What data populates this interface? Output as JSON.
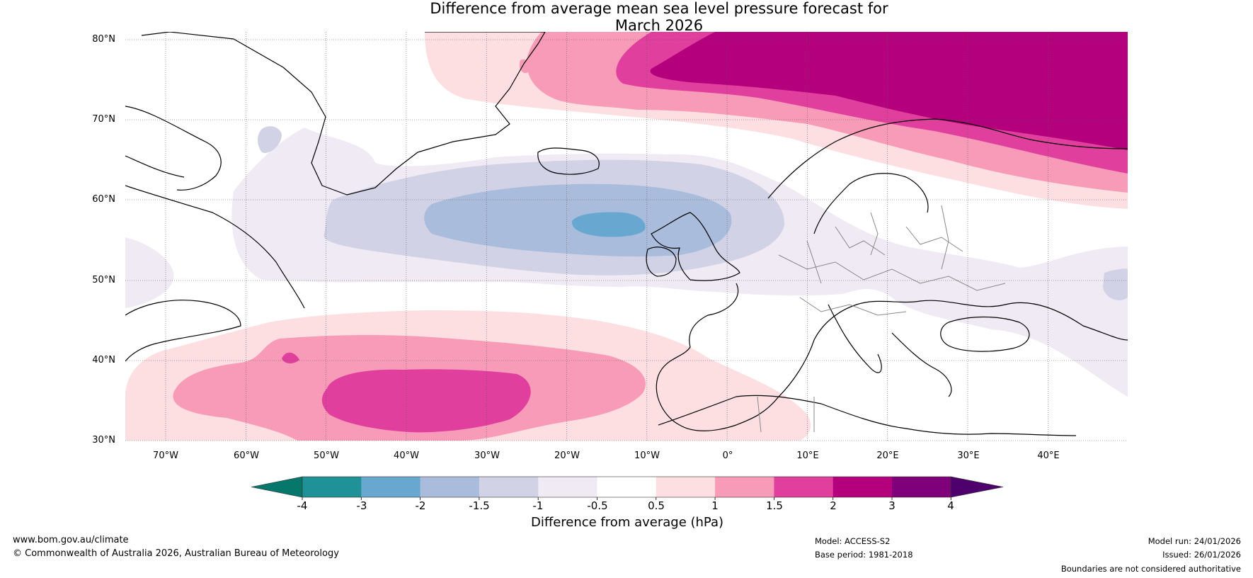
{
  "title": {
    "line1": "Difference from average mean sea level pressure forecast for",
    "line2": "March 2026"
  },
  "map": {
    "lat_labels": [
      "80°N",
      "70°N",
      "60°N",
      "50°N",
      "40°N",
      "30°N"
    ],
    "lon_labels": [
      "70°W",
      "60°W",
      "50°W",
      "40°W",
      "30°W",
      "20°W",
      "10°W",
      "0°",
      "10°E",
      "20°E",
      "30°E",
      "40°E"
    ]
  },
  "colorbar": {
    "title": "Difference from average (hPa)",
    "tick_labels": [
      "-4",
      "-3",
      "-2",
      "-1.5",
      "-1",
      "-0.5",
      "0.5",
      "1",
      "1.5",
      "2",
      "3",
      "4"
    ],
    "colors": [
      "#06776b",
      "#1e9297",
      "#68a8d0",
      "#a9bcdc",
      "#d2d2e6",
      "#efeaf3",
      "#ffffff",
      "#fddfe1",
      "#f89bb8",
      "#e13f9e",
      "#b5007e",
      "#7f007a",
      "#4e006c"
    ]
  },
  "footer": {
    "website": "www.bom.gov.au/climate",
    "copyright": "© Commonwealth of Australia 2026, Australian Bureau of Meteorology",
    "model": "Model: ACCESS-S2",
    "base_period": "Base period: 1981-2018",
    "model_run": "Model run: 24/01/2026",
    "issued": "Issued: 26/01/2026",
    "disclaimer": "Boundaries are not considered authoritative"
  }
}
